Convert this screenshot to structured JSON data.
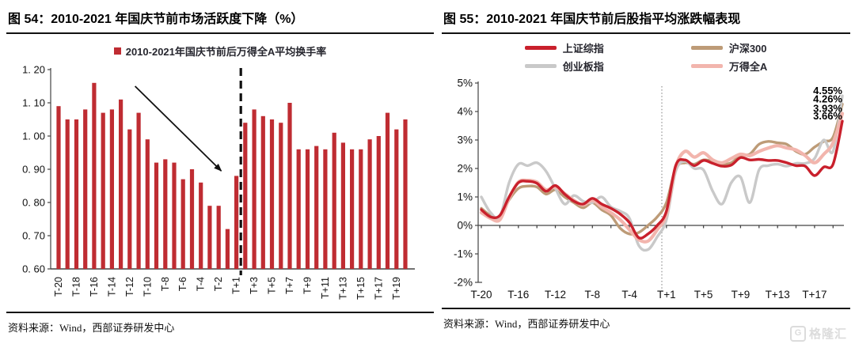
{
  "watermark": {
    "icon": "G",
    "logo_text": "格隆汇",
    "color": "#dcdcdc"
  },
  "chart_data": [
    {
      "type": "bar",
      "title": "图 54：2010-2021 年国庆节前市场活跃度下降（%）",
      "legend": "2010-2021年国庆节前后万得全A平均换手率",
      "source": "资料来源：Wind，西部证券研发中心",
      "bar_color": "#bf2c32",
      "ylim": [
        0.6,
        1.2
      ],
      "y_ticks": [
        "1. 20",
        "1. 10",
        "1. 00",
        "0. 90",
        "0. 80",
        "0. 70",
        "0. 60"
      ],
      "x_tick_labels": [
        "T-20",
        "T-18",
        "T-16",
        "T-14",
        "T-12",
        "T-10",
        "T-8",
        "T-6",
        "T-4",
        "T-2",
        "T+1",
        "T+3",
        "T+5",
        "T+7",
        "T+9",
        "T+11",
        "T+13",
        "T+15",
        "T+17",
        "T+19"
      ],
      "categories": [
        "T-20",
        "T-19",
        "T-18",
        "T-17",
        "T-16",
        "T-15",
        "T-14",
        "T-13",
        "T-12",
        "T-11",
        "T-10",
        "T-9",
        "T-8",
        "T-7",
        "T-6",
        "T-5",
        "T-4",
        "T-3",
        "T-2",
        "T-1",
        "T+1",
        "T+2",
        "T+3",
        "T+4",
        "T+5",
        "T+6",
        "T+7",
        "T+8",
        "T+9",
        "T+10",
        "T+11",
        "T+12",
        "T+13",
        "T+14",
        "T+15",
        "T+16",
        "T+17",
        "T+18",
        "T+19",
        "T+20"
      ],
      "values": [
        1.09,
        1.05,
        1.05,
        1.08,
        1.16,
        1.07,
        1.08,
        1.11,
        1.02,
        1.07,
        0.99,
        0.92,
        0.93,
        0.92,
        0.87,
        0.9,
        0.86,
        0.79,
        0.79,
        0.72,
        0.88,
        1.04,
        1.08,
        1.06,
        1.05,
        1.04,
        1.1,
        0.96,
        0.96,
        0.97,
        0.96,
        1.01,
        0.98,
        0.96,
        0.96,
        0.99,
        1.0,
        1.07,
        1.02,
        1.05
      ],
      "divider_after_category": "T+1",
      "arrow": {
        "from_index": 8.6,
        "from_value": 1.15,
        "to_index": 18.3,
        "to_value": 0.895
      }
    },
    {
      "type": "line",
      "title": "图 55：2010-2021 年国庆节前后股指平均涨跌幅表现",
      "source": "资料来源：Wind，西部证券研发中心",
      "ylim": [
        -2,
        5
      ],
      "y_ticks": [
        "5%",
        "4%",
        "3%",
        "2%",
        "1%",
        "0%",
        "-1%",
        "-2%"
      ],
      "x_tick_labels": [
        "T-20",
        "T-16",
        "T-12",
        "T-8",
        "T-4",
        "T+1",
        "T+5",
        "T+9",
        "T+13",
        "T+17"
      ],
      "categories": [
        "T-20",
        "T-19",
        "T-18",
        "T-17",
        "T-16",
        "T-15",
        "T-14",
        "T-13",
        "T-12",
        "T-11",
        "T-10",
        "T-9",
        "T-8",
        "T-7",
        "T-6",
        "T-5",
        "T-4",
        "T-3",
        "T-2",
        "T-1",
        "T+1",
        "T+2",
        "T+3",
        "T+4",
        "T+5",
        "T+6",
        "T+7",
        "T+8",
        "T+9",
        "T+10",
        "T+11",
        "T+12",
        "T+13",
        "T+14",
        "T+15",
        "T+16",
        "T+17",
        "T+18",
        "T+19",
        "T+20"
      ],
      "divider_after_category": "T-1",
      "legend_order": [
        0,
        2,
        1,
        3
      ],
      "series": [
        {
          "name": "上证综指",
          "color": "#c9202c",
          "end_label": "3.66%",
          "values": [
            0.55,
            0.3,
            0.35,
            1.0,
            1.5,
            1.55,
            1.48,
            1.2,
            1.4,
            1.1,
            0.85,
            0.75,
            0.95,
            0.75,
            0.6,
            0.4,
            0.1,
            -0.43,
            -0.3,
            0.0,
            0.5,
            2.1,
            2.3,
            2.1,
            2.28,
            2.18,
            2.08,
            2.12,
            2.38,
            2.3,
            2.32,
            2.28,
            2.28,
            2.2,
            2.1,
            2.08,
            1.75,
            2.05,
            2.15,
            3.66
          ]
        },
        {
          "name": "创业板指",
          "color": "#c9c9c9",
          "end_label": "4.55%",
          "values": [
            1.0,
            0.45,
            0.3,
            1.5,
            2.15,
            2.1,
            2.2,
            1.9,
            1.3,
            0.75,
            1.05,
            0.85,
            0.8,
            1.0,
            0.65,
            0.5,
            0.25,
            -0.7,
            -0.85,
            -0.4,
            0.2,
            1.9,
            2.25,
            2.0,
            1.95,
            1.2,
            0.75,
            1.5,
            1.7,
            0.8,
            1.95,
            2.1,
            2.15,
            2.08,
            2.18,
            2.18,
            2.35,
            3.0,
            2.6,
            4.55
          ]
        },
        {
          "name": "沪深300",
          "color": "#bd9b77",
          "end_label": "4.26%",
          "values": [
            0.6,
            0.35,
            0.3,
            0.9,
            1.3,
            1.38,
            1.35,
            1.1,
            1.25,
            1.0,
            0.8,
            0.62,
            0.8,
            0.55,
            0.35,
            -0.1,
            -0.3,
            -0.25,
            0.0,
            0.3,
            0.8,
            2.0,
            2.2,
            2.15,
            2.3,
            2.25,
            2.15,
            2.2,
            2.45,
            2.5,
            2.85,
            2.95,
            2.9,
            2.85,
            2.6,
            2.5,
            2.75,
            2.95,
            3.1,
            4.26
          ]
        },
        {
          "name": "万得全A",
          "color": "#f2b5ad",
          "end_label": "3.93%",
          "values": [
            0.45,
            0.25,
            0.2,
            0.95,
            1.52,
            1.58,
            1.52,
            1.25,
            1.35,
            1.12,
            0.88,
            0.72,
            0.88,
            0.65,
            0.45,
            0.2,
            -0.15,
            -0.5,
            -0.55,
            -0.15,
            0.4,
            2.05,
            2.6,
            2.4,
            2.55,
            2.3,
            2.2,
            2.35,
            2.5,
            2.45,
            2.6,
            2.72,
            2.8,
            2.72,
            2.65,
            2.45,
            2.2,
            2.5,
            2.9,
            3.93
          ]
        }
      ]
    }
  ]
}
